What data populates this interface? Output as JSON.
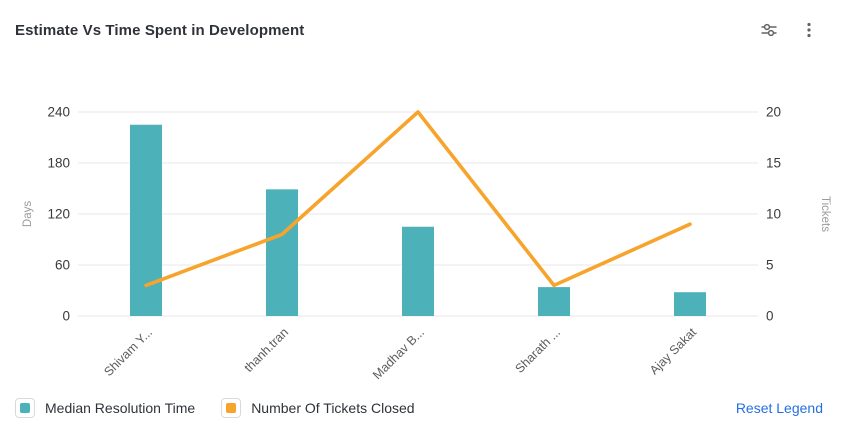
{
  "header": {
    "title": "Estimate Vs Time Spent in Development",
    "settings_icon": "sliders-icon",
    "menu_icon": "kebab-icon"
  },
  "chart_data": {
    "type": "combo",
    "categories": [
      "Shivam Y...",
      "thanh.tran",
      "Madhav B...",
      "Sharath ...",
      "Ajay Sakat"
    ],
    "series": [
      {
        "name": "Median Resolution Time",
        "type": "bar",
        "axis": "left",
        "color": "#4DB1BA",
        "values": [
          225,
          149,
          105,
          34,
          28
        ]
      },
      {
        "name": "Number Of Tickets Closed",
        "type": "line",
        "axis": "right",
        "color": "#F7A42D",
        "values": [
          3,
          8,
          20,
          3,
          9
        ]
      }
    ],
    "left_axis": {
      "title": "Days",
      "ticks": [
        0,
        60,
        120,
        180,
        240
      ],
      "min": 0,
      "max": 240
    },
    "right_axis": {
      "title": "Tickets",
      "ticks": [
        0,
        5,
        10,
        15,
        20
      ],
      "min": 0,
      "max": 20
    },
    "grid": "horizontal",
    "legend_position": "bottom"
  },
  "legend": {
    "items": [
      {
        "label": "Median Resolution Time",
        "color": "#4DB1BA"
      },
      {
        "label": "Number Of Tickets Closed",
        "color": "#F7A42D"
      }
    ],
    "reset_label": "Reset Legend",
    "reset_color": "#2470E2"
  },
  "colors": {
    "grid": "#ECECEC",
    "tick_label": "#3A3A3A",
    "axis_title": "#9B9B9B",
    "category_label": "#5C5C5C",
    "icon": "#5F6368"
  }
}
